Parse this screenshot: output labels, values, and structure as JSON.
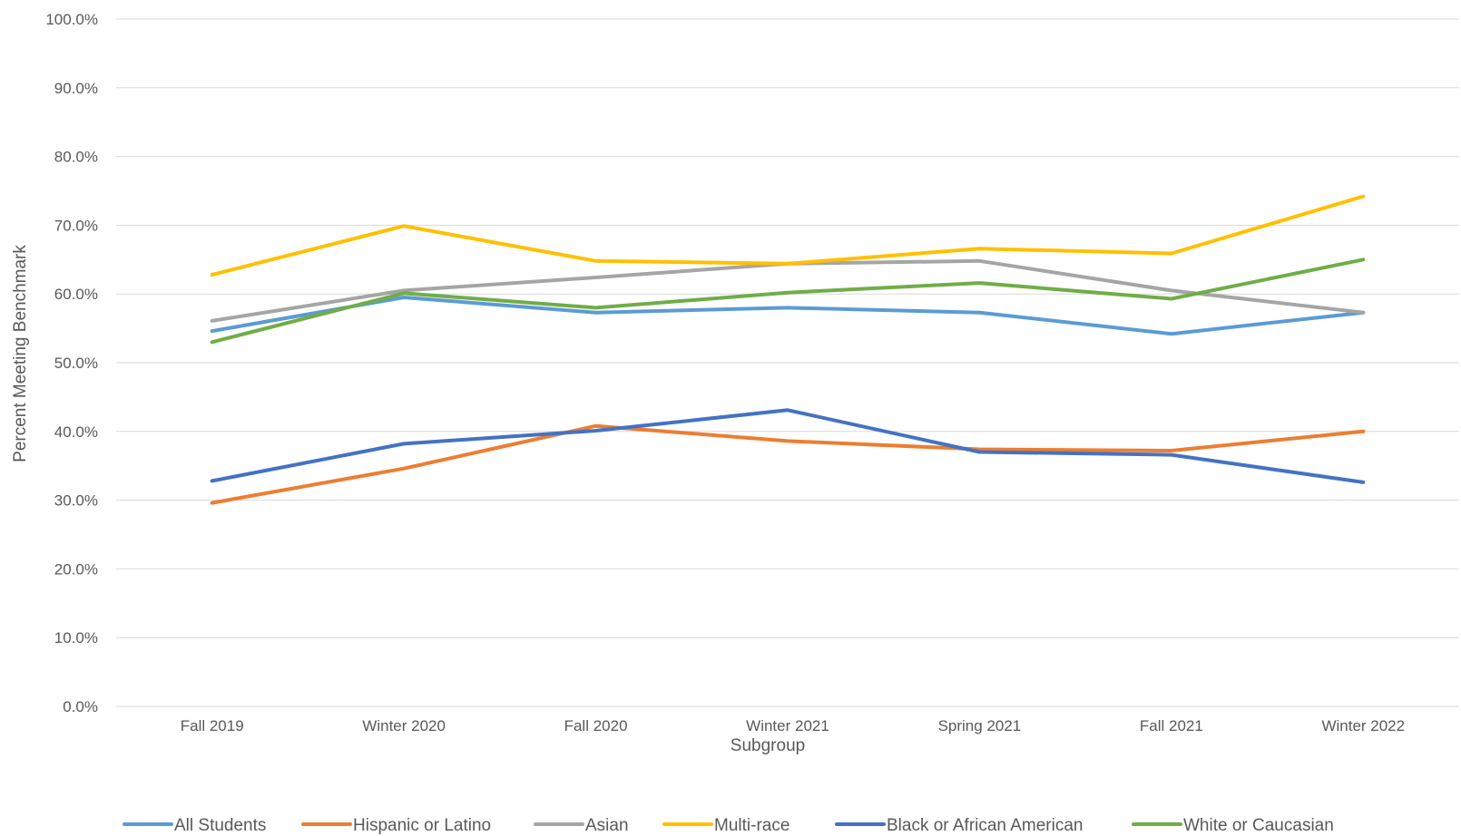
{
  "chart_data": {
    "type": "line",
    "title": "",
    "xlabel": "Subgroup",
    "ylabel": "Percent Meeting Benchmark",
    "categories": [
      "Fall 2019",
      "Winter 2020",
      "Fall 2020",
      "Winter 2021",
      "Spring 2021",
      "Fall 2021",
      "Winter 2022"
    ],
    "ylim": [
      0,
      100
    ],
    "yticks": [
      "0.0%",
      "10.0%",
      "20.0%",
      "30.0%",
      "40.0%",
      "50.0%",
      "60.0%",
      "70.0%",
      "80.0%",
      "90.0%",
      "100.0%"
    ],
    "grid": true,
    "legend_position": "bottom",
    "series": [
      {
        "name": "All Students",
        "color": "#5b9bd5",
        "values": [
          54.6,
          59.5,
          57.3,
          58.0,
          57.3,
          54.2,
          57.3
        ]
      },
      {
        "name": "Hispanic or Latino",
        "color": "#ed7d31",
        "values": [
          29.6,
          34.6,
          40.8,
          38.6,
          37.4,
          37.2,
          40.0
        ]
      },
      {
        "name": "Asian",
        "color": "#a5a5a5",
        "values": [
          56.1,
          60.5,
          62.4,
          64.4,
          64.8,
          60.5,
          57.3
        ]
      },
      {
        "name": "Multi-race",
        "color": "#ffc000",
        "values": [
          62.8,
          69.9,
          64.8,
          64.4,
          66.6,
          65.9,
          74.2
        ]
      },
      {
        "name": "Black or African American",
        "color": "#4472c4",
        "values": [
          32.8,
          38.2,
          40.1,
          43.1,
          37.0,
          36.6,
          32.6
        ]
      },
      {
        "name": "White or Caucasian",
        "color": "#70ad47",
        "values": [
          53.0,
          60.1,
          58.0,
          60.2,
          61.6,
          59.3,
          65.0
        ]
      }
    ]
  }
}
